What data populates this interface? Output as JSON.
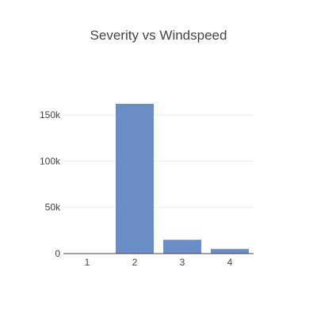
{
  "chart_data": {
    "type": "bar",
    "title": "Severity vs Windspeed",
    "xlabel": "",
    "ylabel": "",
    "categories": [
      "1",
      "2",
      "3",
      "4"
    ],
    "values": [
      0,
      162000,
      15000,
      5000
    ],
    "ylim": [
      0,
      180000
    ],
    "y_ticks": [
      0,
      50000,
      100000,
      150000
    ],
    "y_tick_labels": [
      "0",
      "50k",
      "100k",
      "150k"
    ],
    "grid": true,
    "legend": "none",
    "bar_color": "#6a8dc8"
  }
}
